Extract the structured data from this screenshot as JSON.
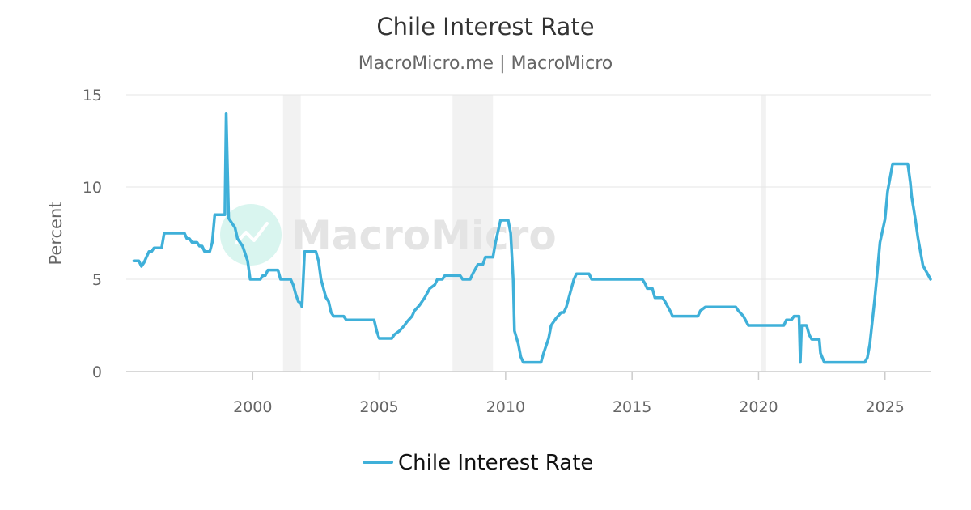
{
  "colors": {
    "line": "#3fb0d9",
    "recession": "#f2f2f2",
    "grid": "#e6e6e6",
    "watermark_circle": "#d9f5ef",
    "watermark_mark": "#ffffff"
  },
  "watermark": {
    "text": "MacroMicro"
  },
  "chart_data": {
    "type": "line",
    "title": "Chile Interest Rate",
    "subtitle": "MacroMicro.me | MacroMicro",
    "ylabel": "Percent",
    "xlabel": "",
    "xlim": [
      1995.0,
      2026.8
    ],
    "ylim": [
      0,
      15
    ],
    "x_ticks": [
      2000,
      2005,
      2010,
      2015,
      2020,
      2025
    ],
    "y_ticks": [
      0,
      5,
      10,
      15
    ],
    "grid": true,
    "legend": "bottom-center",
    "recessions": [
      [
        2001.2,
        2001.9
      ],
      [
        2007.9,
        2009.5
      ],
      [
        2020.1,
        2020.3
      ]
    ],
    "series": [
      {
        "name": "Chile Interest Rate",
        "points": [
          [
            1995.3,
            6.0
          ],
          [
            1995.5,
            6.0
          ],
          [
            1995.6,
            5.7
          ],
          [
            1995.7,
            5.9
          ],
          [
            1995.9,
            6.5
          ],
          [
            1996.0,
            6.5
          ],
          [
            1996.1,
            6.7
          ],
          [
            1996.4,
            6.7
          ],
          [
            1996.5,
            7.5
          ],
          [
            1997.3,
            7.5
          ],
          [
            1997.4,
            7.2
          ],
          [
            1997.5,
            7.2
          ],
          [
            1997.6,
            7.0
          ],
          [
            1997.8,
            7.0
          ],
          [
            1997.9,
            6.8
          ],
          [
            1998.0,
            6.8
          ],
          [
            1998.1,
            6.5
          ],
          [
            1998.3,
            6.5
          ],
          [
            1998.4,
            7.0
          ],
          [
            1998.5,
            8.5
          ],
          [
            1998.9,
            8.5
          ],
          [
            1998.95,
            14.0
          ],
          [
            1999.05,
            8.3
          ],
          [
            1999.2,
            8.0
          ],
          [
            1999.3,
            7.8
          ],
          [
            1999.4,
            7.2
          ],
          [
            1999.6,
            6.8
          ],
          [
            1999.8,
            6.0
          ],
          [
            1999.9,
            5.0
          ],
          [
            2000.3,
            5.0
          ],
          [
            2000.4,
            5.2
          ],
          [
            2000.5,
            5.2
          ],
          [
            2000.6,
            5.5
          ],
          [
            2001.0,
            5.5
          ],
          [
            2001.1,
            5.0
          ],
          [
            2001.5,
            5.0
          ],
          [
            2001.6,
            4.7
          ],
          [
            2001.7,
            4.2
          ],
          [
            2001.8,
            3.8
          ],
          [
            2001.9,
            3.7
          ],
          [
            2001.95,
            3.5
          ],
          [
            2002.05,
            6.5
          ],
          [
            2002.5,
            6.5
          ],
          [
            2002.6,
            6.0
          ],
          [
            2002.7,
            5.0
          ],
          [
            2002.8,
            4.5
          ],
          [
            2002.9,
            4.0
          ],
          [
            2003.0,
            3.8
          ],
          [
            2003.1,
            3.2
          ],
          [
            2003.2,
            3.0
          ],
          [
            2003.6,
            3.0
          ],
          [
            2003.7,
            2.8
          ],
          [
            2004.8,
            2.8
          ],
          [
            2004.9,
            2.2
          ],
          [
            2005.0,
            1.8
          ],
          [
            2005.5,
            1.8
          ],
          [
            2005.6,
            2.0
          ],
          [
            2005.8,
            2.2
          ],
          [
            2006.0,
            2.5
          ],
          [
            2006.1,
            2.7
          ],
          [
            2006.3,
            3.0
          ],
          [
            2006.4,
            3.3
          ],
          [
            2006.6,
            3.6
          ],
          [
            2006.8,
            4.0
          ],
          [
            2007.0,
            4.5
          ],
          [
            2007.2,
            4.7
          ],
          [
            2007.3,
            5.0
          ],
          [
            2007.5,
            5.0
          ],
          [
            2007.6,
            5.2
          ],
          [
            2008.2,
            5.2
          ],
          [
            2008.3,
            5.0
          ],
          [
            2008.6,
            5.0
          ],
          [
            2008.7,
            5.3
          ],
          [
            2008.9,
            5.8
          ],
          [
            2009.1,
            5.8
          ],
          [
            2009.2,
            6.2
          ],
          [
            2009.5,
            6.2
          ],
          [
            2009.6,
            7.0
          ],
          [
            2009.8,
            8.2
          ],
          [
            2010.1,
            8.2
          ],
          [
            2010.2,
            7.5
          ],
          [
            2010.3,
            5.0
          ],
          [
            2010.35,
            2.2
          ],
          [
            2010.5,
            1.5
          ],
          [
            2010.6,
            0.8
          ],
          [
            2010.7,
            0.5
          ],
          [
            2011.4,
            0.5
          ],
          [
            2011.5,
            1.0
          ],
          [
            2011.7,
            1.8
          ],
          [
            2011.8,
            2.5
          ],
          [
            2012.0,
            2.9
          ],
          [
            2012.2,
            3.2
          ],
          [
            2012.3,
            3.2
          ],
          [
            2012.4,
            3.5
          ],
          [
            2012.5,
            4.0
          ],
          [
            2012.6,
            4.5
          ],
          [
            2012.7,
            5.0
          ],
          [
            2012.8,
            5.3
          ],
          [
            2013.3,
            5.3
          ],
          [
            2013.4,
            5.0
          ],
          [
            2015.4,
            5.0
          ],
          [
            2015.5,
            4.8
          ],
          [
            2015.6,
            4.5
          ],
          [
            2015.8,
            4.5
          ],
          [
            2015.9,
            4.0
          ],
          [
            2016.2,
            4.0
          ],
          [
            2016.3,
            3.8
          ],
          [
            2016.5,
            3.3
          ],
          [
            2016.6,
            3.0
          ],
          [
            2017.6,
            3.0
          ],
          [
            2017.7,
            3.3
          ],
          [
            2017.9,
            3.5
          ],
          [
            2019.1,
            3.5
          ],
          [
            2019.2,
            3.3
          ],
          [
            2019.4,
            3.0
          ],
          [
            2019.6,
            2.5
          ],
          [
            2021.0,
            2.5
          ],
          [
            2021.1,
            2.8
          ],
          [
            2021.3,
            2.8
          ],
          [
            2021.4,
            3.0
          ],
          [
            2021.6,
            3.0
          ],
          [
            2021.65,
            0.5
          ],
          [
            2021.7,
            2.5
          ],
          [
            2021.9,
            2.5
          ],
          [
            2022.0,
            2.0
          ],
          [
            2022.1,
            1.75
          ],
          [
            2022.4,
            1.75
          ],
          [
            2022.45,
            1.0
          ],
          [
            2022.6,
            0.5
          ],
          [
            2024.2,
            0.5
          ],
          [
            2024.3,
            0.75
          ],
          [
            2024.4,
            1.5
          ],
          [
            2024.5,
            2.75
          ],
          [
            2024.6,
            4.0
          ],
          [
            2024.7,
            5.5
          ],
          [
            2024.8,
            7.0
          ],
          [
            2025.0,
            8.25
          ],
          [
            2025.1,
            9.75
          ],
          [
            2025.2,
            10.5
          ],
          [
            2025.3,
            11.25
          ],
          [
            2025.9,
            11.25
          ],
          [
            2026.0,
            10.25
          ],
          [
            2026.05,
            9.5
          ],
          [
            2026.2,
            8.25
          ],
          [
            2026.3,
            7.25
          ],
          [
            2026.4,
            6.5
          ],
          [
            2026.5,
            5.75
          ],
          [
            2026.8,
            5.0
          ]
        ]
      }
    ]
  }
}
